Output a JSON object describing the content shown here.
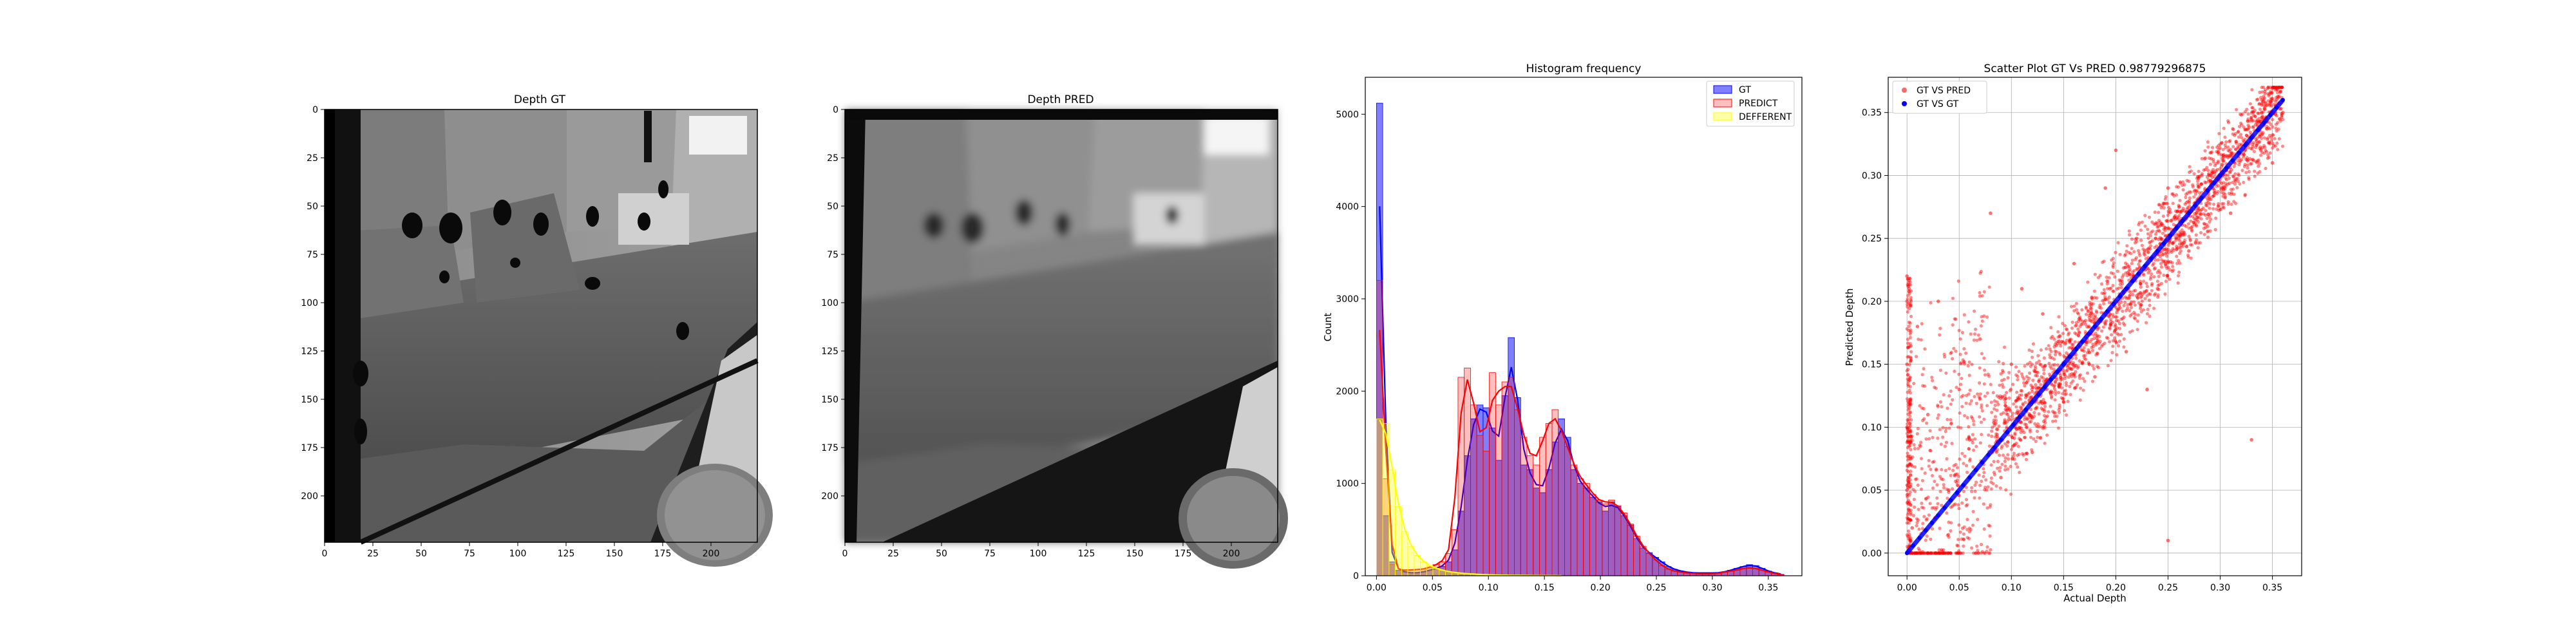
{
  "chart_data": [
    {
      "type": "heatmap",
      "title": "Depth GT",
      "x_ticks": [
        "0",
        "25",
        "50",
        "75",
        "100",
        "125",
        "150",
        "175",
        "200"
      ],
      "y_ticks": [
        "0",
        "25",
        "50",
        "75",
        "100",
        "125",
        "150",
        "175",
        "200"
      ],
      "xlim": [
        0,
        224
      ],
      "ylim": [
        224,
        0
      ],
      "colormap": "gray"
    },
    {
      "type": "heatmap",
      "title": "Depth PRED",
      "x_ticks": [
        "0",
        "25",
        "50",
        "75",
        "100",
        "125",
        "150",
        "175",
        "200"
      ],
      "y_ticks": [
        "0",
        "25",
        "50",
        "75",
        "100",
        "125",
        "150",
        "175",
        "200"
      ],
      "xlim": [
        0,
        224
      ],
      "ylim": [
        224,
        0
      ],
      "colormap": "gray"
    },
    {
      "type": "bar",
      "title": "Histogram frequency",
      "xlabel": "",
      "ylabel": "Count",
      "xlim": [
        -0.01,
        0.38
      ],
      "ylim": [
        0,
        5400
      ],
      "x_ticks": [
        "0.00",
        "0.05",
        "0.10",
        "0.15",
        "0.20",
        "0.25",
        "0.30",
        "0.35"
      ],
      "y_ticks": [
        "0",
        "1000",
        "2000",
        "3000",
        "4000",
        "5000"
      ],
      "legend_position": "top-right",
      "bin_width": 0.0056,
      "series": [
        {
          "name": "GT",
          "color": "#0000ff",
          "bins": [
            [
              0.0,
              5120
            ],
            [
              0.0056,
              650
            ],
            [
              0.0112,
              150
            ],
            [
              0.0168,
              60
            ],
            [
              0.0224,
              40
            ],
            [
              0.028,
              30
            ],
            [
              0.0336,
              30
            ],
            [
              0.0392,
              40
            ],
            [
              0.0448,
              60
            ],
            [
              0.0504,
              80
            ],
            [
              0.056,
              100
            ],
            [
              0.0616,
              150
            ],
            [
              0.0672,
              280
            ],
            [
              0.0728,
              700
            ],
            [
              0.0784,
              1300
            ],
            [
              0.084,
              1700
            ],
            [
              0.0896,
              1850
            ],
            [
              0.0952,
              1820
            ],
            [
              0.1008,
              1600
            ],
            [
              0.1064,
              1250
            ],
            [
              0.112,
              1950
            ],
            [
              0.1176,
              2580
            ],
            [
              0.1232,
              1930
            ],
            [
              0.1288,
              1200
            ],
            [
              0.1344,
              1150
            ],
            [
              0.14,
              950
            ],
            [
              0.1456,
              900
            ],
            [
              0.1512,
              1150
            ],
            [
              0.1568,
              1450
            ],
            [
              0.1624,
              1700
            ],
            [
              0.168,
              1500
            ],
            [
              0.1736,
              1150
            ],
            [
              0.1792,
              1000
            ],
            [
              0.1848,
              950
            ],
            [
              0.1904,
              850
            ],
            [
              0.196,
              800
            ],
            [
              0.2016,
              700
            ],
            [
              0.2072,
              800
            ],
            [
              0.2128,
              750
            ],
            [
              0.2184,
              650
            ],
            [
              0.224,
              550
            ],
            [
              0.2296,
              400
            ],
            [
              0.2352,
              300
            ],
            [
              0.2408,
              250
            ],
            [
              0.2464,
              200
            ],
            [
              0.252,
              150
            ],
            [
              0.2576,
              100
            ],
            [
              0.2632,
              70
            ],
            [
              0.2688,
              50
            ],
            [
              0.2744,
              40
            ],
            [
              0.28,
              30
            ],
            [
              0.2856,
              30
            ],
            [
              0.2912,
              30
            ],
            [
              0.2968,
              30
            ],
            [
              0.3024,
              30
            ],
            [
              0.308,
              40
            ],
            [
              0.3136,
              60
            ],
            [
              0.3192,
              80
            ],
            [
              0.3248,
              100
            ],
            [
              0.3304,
              120
            ],
            [
              0.336,
              110
            ],
            [
              0.3416,
              80
            ],
            [
              0.3472,
              50
            ],
            [
              0.3528,
              30
            ],
            [
              0.3584,
              15
            ]
          ]
        },
        {
          "name": "PREDICT",
          "color": "#ff0000",
          "bins": [
            [
              0.0,
              3200
            ],
            [
              0.0056,
              1050
            ],
            [
              0.0112,
              120
            ],
            [
              0.0168,
              60
            ],
            [
              0.0224,
              60
            ],
            [
              0.028,
              60
            ],
            [
              0.0336,
              70
            ],
            [
              0.0392,
              70
            ],
            [
              0.0448,
              90
            ],
            [
              0.0504,
              120
            ],
            [
              0.056,
              150
            ],
            [
              0.0616,
              240
            ],
            [
              0.0672,
              500
            ],
            [
              0.0728,
              2150
            ],
            [
              0.0784,
              2250
            ],
            [
              0.084,
              1850
            ],
            [
              0.0896,
              1520
            ],
            [
              0.0952,
              1350
            ],
            [
              0.1008,
              2200
            ],
            [
              0.1064,
              1850
            ],
            [
              0.112,
              2100
            ],
            [
              0.1176,
              2150
            ],
            [
              0.1232,
              1800
            ],
            [
              0.1288,
              1500
            ],
            [
              0.1344,
              1300
            ],
            [
              0.14,
              1200
            ],
            [
              0.1456,
              1500
            ],
            [
              0.1512,
              1650
            ],
            [
              0.1568,
              1800
            ],
            [
              0.1624,
              1550
            ],
            [
              0.168,
              1400
            ],
            [
              0.1736,
              1200
            ],
            [
              0.1792,
              1050
            ],
            [
              0.1848,
              1000
            ],
            [
              0.1904,
              880
            ],
            [
              0.196,
              820
            ],
            [
              0.2016,
              780
            ],
            [
              0.2072,
              820
            ],
            [
              0.2128,
              760
            ],
            [
              0.2184,
              680
            ],
            [
              0.224,
              560
            ],
            [
              0.2296,
              430
            ],
            [
              0.2352,
              320
            ],
            [
              0.2408,
              240
            ],
            [
              0.2464,
              170
            ],
            [
              0.252,
              110
            ],
            [
              0.2576,
              70
            ],
            [
              0.2632,
              50
            ],
            [
              0.2688,
              40
            ],
            [
              0.2744,
              30
            ],
            [
              0.28,
              25
            ],
            [
              0.2856,
              20
            ],
            [
              0.2912,
              20
            ],
            [
              0.2968,
              20
            ],
            [
              0.3024,
              25
            ],
            [
              0.308,
              40
            ],
            [
              0.3136,
              50
            ],
            [
              0.3192,
              60
            ],
            [
              0.3248,
              80
            ],
            [
              0.3304,
              90
            ],
            [
              0.336,
              80
            ],
            [
              0.3416,
              60
            ],
            [
              0.3472,
              40
            ],
            [
              0.3528,
              25
            ],
            [
              0.3584,
              10
            ]
          ]
        },
        {
          "name": "DEFFERENT",
          "color": "#ffff00",
          "bins": [
            [
              0.0,
              1700
            ],
            [
              0.0056,
              1650
            ],
            [
              0.0112,
              1150
            ],
            [
              0.0168,
              750
            ],
            [
              0.0224,
              480
            ],
            [
              0.028,
              320
            ],
            [
              0.0336,
              220
            ],
            [
              0.0392,
              150
            ],
            [
              0.0448,
              110
            ],
            [
              0.0504,
              80
            ],
            [
              0.056,
              60
            ],
            [
              0.0616,
              45
            ],
            [
              0.0672,
              35
            ],
            [
              0.0728,
              28
            ],
            [
              0.0784,
              22
            ],
            [
              0.084,
              18
            ],
            [
              0.0896,
              14
            ],
            [
              0.0952,
              11
            ],
            [
              0.1008,
              9
            ],
            [
              0.1064,
              7
            ],
            [
              0.112,
              6
            ],
            [
              0.1176,
              5
            ],
            [
              0.1232,
              4
            ],
            [
              0.1288,
              3
            ],
            [
              0.1344,
              3
            ],
            [
              0.14,
              2
            ],
            [
              0.1456,
              2
            ],
            [
              0.1512,
              2
            ],
            [
              0.1568,
              1
            ],
            [
              0.1624,
              1
            ]
          ]
        }
      ]
    },
    {
      "type": "scatter",
      "title": "Scatter Plot GT Vs PRED 0.98779296875",
      "xlabel": "Actual Depth",
      "ylabel": "Predicted Depth",
      "xlim": [
        -0.018,
        0.378
      ],
      "ylim": [
        -0.018,
        0.378
      ],
      "x_ticks": [
        "0.00",
        "0.05",
        "0.10",
        "0.15",
        "0.20",
        "0.25",
        "0.30",
        "0.35"
      ],
      "y_ticks": [
        "0.00",
        "0.05",
        "0.10",
        "0.15",
        "0.20",
        "0.25",
        "0.30",
        "0.35"
      ],
      "grid": true,
      "legend_position": "top-left",
      "series": [
        {
          "name": "GT VS PRED",
          "color": "#ff0000",
          "marker": "circle",
          "point_cloud": "dense band along y = x spanning 0.00 to 0.36, with broad spread below 0.10 and vertical column at x≈0.00",
          "points": [
            [
              0.0,
              0.22
            ],
            [
              0.0,
              0.2
            ],
            [
              0.0,
              0.15
            ],
            [
              0.0,
              0.1
            ],
            [
              0.0,
              0.05
            ],
            [
              0.002,
              0.21
            ],
            [
              0.003,
              0.12
            ],
            [
              0.004,
              0.07
            ],
            [
              0.005,
              0.02
            ],
            [
              0.01,
              0.18
            ],
            [
              0.02,
              0.11
            ],
            [
              0.03,
              0.2
            ],
            [
              0.04,
              0.05
            ],
            [
              0.05,
              0.13
            ],
            [
              0.06,
              0.09
            ],
            [
              0.07,
              0.17
            ],
            [
              0.08,
              0.27
            ],
            [
              0.09,
              0.06
            ],
            [
              0.1,
              0.15
            ],
            [
              0.11,
              0.21
            ],
            [
              0.12,
              0.08
            ],
            [
              0.13,
              0.19
            ],
            [
              0.15,
              0.12
            ],
            [
              0.16,
              0.23
            ],
            [
              0.18,
              0.14
            ],
            [
              0.19,
              0.29
            ],
            [
              0.2,
              0.32
            ],
            [
              0.21,
              0.16
            ],
            [
              0.22,
              0.25
            ],
            [
              0.23,
              0.13
            ],
            [
              0.24,
              0.21
            ],
            [
              0.25,
              0.29
            ],
            [
              0.27,
              0.24
            ],
            [
              0.29,
              0.3
            ],
            [
              0.31,
              0.27
            ],
            [
              0.33,
              0.33
            ],
            [
              0.34,
              0.36
            ],
            [
              0.35,
              0.31
            ],
            [
              0.36,
              0.35
            ],
            [
              0.33,
              0.09
            ],
            [
              0.25,
              0.01
            ]
          ]
        },
        {
          "name": "GT VS GT",
          "color": "#0000ff",
          "marker": "circle",
          "points": [
            [
              0.0,
              0.0
            ],
            [
              0.36,
              0.36
            ]
          ]
        }
      ]
    }
  ]
}
